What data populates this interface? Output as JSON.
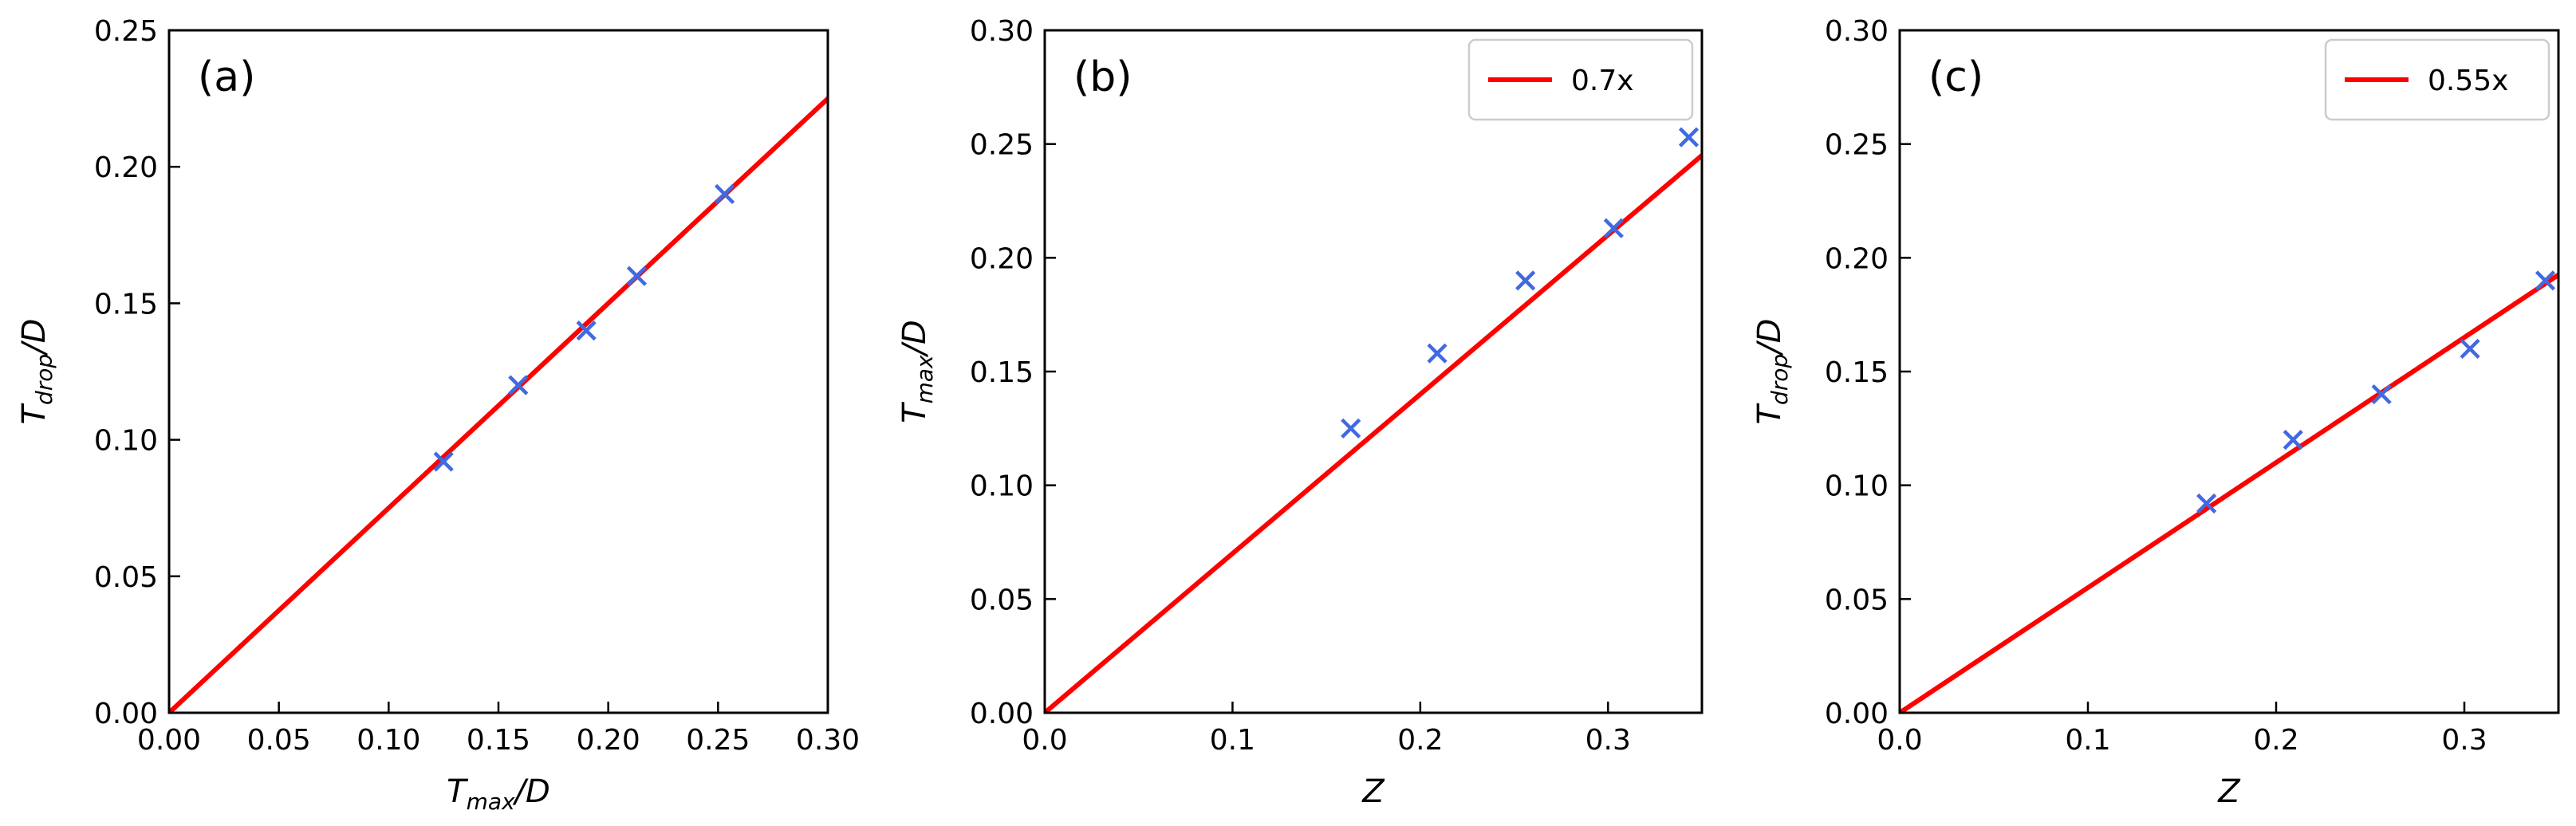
{
  "colors": {
    "fit_line": "#ff0000",
    "points": "#4169e1",
    "axes": "#000000"
  },
  "chart_data": [
    {
      "type": "scatter",
      "panel_label": "(a)",
      "xlabel": {
        "main": "T",
        "sub": "max",
        "tail": "/D"
      },
      "ylabel": {
        "main": "T",
        "sub": "drop",
        "tail": "/D"
      },
      "xlim": [
        0,
        0.3
      ],
      "ylim": [
        0,
        0.25
      ],
      "xticks": [
        "0.00",
        "0.05",
        "0.10",
        "0.15",
        "0.20",
        "0.25",
        "0.30"
      ],
      "yticks": [
        "0.00",
        "0.05",
        "0.10",
        "0.15",
        "0.20",
        "0.25"
      ],
      "series": [
        {
          "kind": "points",
          "marker": "x",
          "x": [
            0.125,
            0.159,
            0.19,
            0.213,
            0.253
          ],
          "y": [
            0.092,
            0.12,
            0.14,
            0.16,
            0.19
          ]
        },
        {
          "kind": "line",
          "slope": 0.75
        }
      ],
      "legend": null
    },
    {
      "type": "scatter",
      "panel_label": "(b)",
      "xlabel": {
        "main": "Z",
        "sub": "",
        "tail": ""
      },
      "ylabel": {
        "main": "T",
        "sub": "max",
        "tail": "/D"
      },
      "xlim": [
        0,
        0.35
      ],
      "ylim": [
        0,
        0.3
      ],
      "xticks": [
        "0.0",
        "0.1",
        "0.2",
        "0.3"
      ],
      "yticks": [
        "0.00",
        "0.05",
        "0.10",
        "0.15",
        "0.20",
        "0.25",
        "0.30"
      ],
      "series": [
        {
          "kind": "points",
          "marker": "x",
          "x": [
            0.163,
            0.209,
            0.256,
            0.303,
            0.343
          ],
          "y": [
            0.125,
            0.158,
            0.19,
            0.213,
            0.253
          ]
        },
        {
          "kind": "line",
          "slope": 0.7,
          "name": "0.7x"
        }
      ],
      "legend": {
        "position": "top-right",
        "label": "0.7x"
      }
    },
    {
      "type": "scatter",
      "panel_label": "(c)",
      "xlabel": {
        "main": "Z",
        "sub": "",
        "tail": ""
      },
      "ylabel": {
        "main": "T",
        "sub": "drop",
        "tail": "/D"
      },
      "xlim": [
        0,
        0.35
      ],
      "ylim": [
        0,
        0.3
      ],
      "xticks": [
        "0.0",
        "0.1",
        "0.2",
        "0.3"
      ],
      "yticks": [
        "0.00",
        "0.05",
        "0.10",
        "0.15",
        "0.20",
        "0.25",
        "0.30"
      ],
      "series": [
        {
          "kind": "points",
          "marker": "x",
          "x": [
            0.163,
            0.209,
            0.256,
            0.303,
            0.343
          ],
          "y": [
            0.092,
            0.12,
            0.14,
            0.16,
            0.19
          ]
        },
        {
          "kind": "line",
          "slope": 0.55,
          "name": "0.55x"
        }
      ],
      "legend": {
        "position": "top-right",
        "label": "0.55x"
      }
    }
  ]
}
